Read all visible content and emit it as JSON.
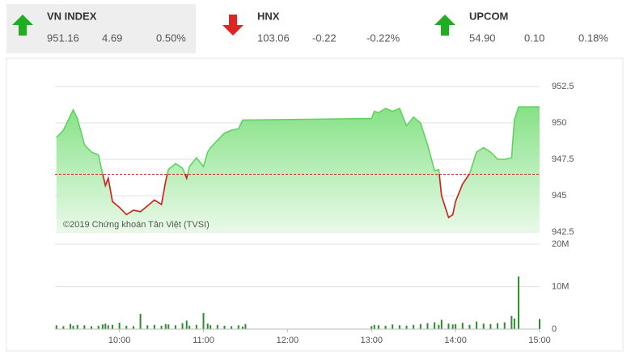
{
  "header": {
    "indices": [
      {
        "name": "VN INDEX",
        "value": "951.16",
        "change": "4.69",
        "percent": "0.50%",
        "direction": "up"
      },
      {
        "name": "HNX",
        "value": "103.06",
        "change": "-0.22",
        "percent": "-0.22%",
        "direction": "down"
      },
      {
        "name": "UPCOM",
        "value": "54.90",
        "change": "0.10",
        "percent": "0.18%",
        "direction": "up"
      }
    ]
  },
  "chart_data": {
    "type": "line",
    "annotation": "©2019 Chứng khoán Tân Việt (TVSI)",
    "x": [
      "09:15",
      "09:20",
      "09:25",
      "09:27",
      "09:30",
      "09:35",
      "09:40",
      "09:45",
      "09:48",
      "09:50",
      "09:52",
      "09:55",
      "10:00",
      "10:05",
      "10:10",
      "10:15",
      "10:20",
      "10:25",
      "10:30",
      "10:33",
      "10:35",
      "10:40",
      "10:45",
      "10:48",
      "10:50",
      "10:55",
      "11:00",
      "11:03",
      "11:05",
      "11:10",
      "11:15",
      "11:20",
      "11:25",
      "11:28",
      "11:30",
      "13:00",
      "13:02",
      "13:05",
      "13:10",
      "13:15",
      "13:20",
      "13:25",
      "13:30",
      "13:35",
      "13:40",
      "13:45",
      "13:48",
      "13:50",
      "13:55",
      "13:58",
      "14:00",
      "14:05",
      "14:10",
      "14:15",
      "14:20",
      "14:25",
      "14:30",
      "14:35",
      "14:40",
      "14:42",
      "14:45",
      "15:00"
    ],
    "series": [
      {
        "name": "VN INDEX",
        "color": "#5fd35f",
        "below_color": "#d42020",
        "values": [
          949.0,
          949.5,
          950.5,
          950.9,
          950.3,
          948.5,
          948.0,
          947.8,
          946.5,
          945.7,
          946.2,
          944.6,
          944.2,
          943.7,
          944.0,
          943.9,
          944.3,
          944.7,
          944.4,
          946.0,
          946.8,
          947.2,
          946.9,
          946.2,
          947.0,
          947.6,
          947.0,
          948.0,
          948.3,
          948.8,
          949.3,
          949.5,
          949.6,
          950.2,
          950.2,
          950.3,
          950.8,
          950.7,
          951.0,
          950.8,
          951.0,
          949.8,
          950.4,
          950.0,
          948.5,
          946.7,
          946.8,
          945.0,
          943.5,
          943.7,
          944.6,
          945.8,
          946.5,
          948.0,
          948.3,
          948.0,
          947.5,
          947.5,
          947.6,
          950.2,
          951.1,
          951.1
        ]
      },
      {
        "name": "Volume",
        "color": "#2e8b2e",
        "values": [
          900000,
          700000,
          1200000,
          800000,
          1000000,
          900000,
          700000,
          800000,
          1100000,
          1300000,
          900000,
          1000000,
          1500000,
          800000,
          700000,
          3600000,
          900000,
          1000000,
          800000,
          1200000,
          1100000,
          900000,
          1400000,
          2000000,
          800000,
          1000000,
          3800000,
          1300000,
          900000,
          1000000,
          800000,
          700000,
          900000,
          600000,
          1200000,
          700000,
          1000000,
          900000,
          800000,
          1100000,
          900000,
          800000,
          1000000,
          1200000,
          1400000,
          1600000,
          1000000,
          2200000,
          1300000,
          1100000,
          1200000,
          1500000,
          1000000,
          1800000,
          1300000,
          1200000,
          1400000,
          1600000,
          3100000,
          2500000,
          12400000,
          2400000
        ]
      }
    ],
    "reference": 946.47,
    "reference_color": "#d42020",
    "xticks": [
      "10:00",
      "11:00",
      "12:00",
      "13:00",
      "14:00",
      "15:00"
    ],
    "xlim": [
      "09:14",
      "15:00"
    ],
    "ylim": [
      942.5,
      952.5
    ],
    "yticks": [
      942.5,
      945,
      947.5,
      950,
      952.5
    ],
    "y2lim": [
      0,
      20000000
    ],
    "y2ticks": [
      0,
      {
        "value": 10000000,
        "label": "10M"
      },
      {
        "value": 20000000,
        "label": "20M"
      }
    ],
    "grid": true
  }
}
